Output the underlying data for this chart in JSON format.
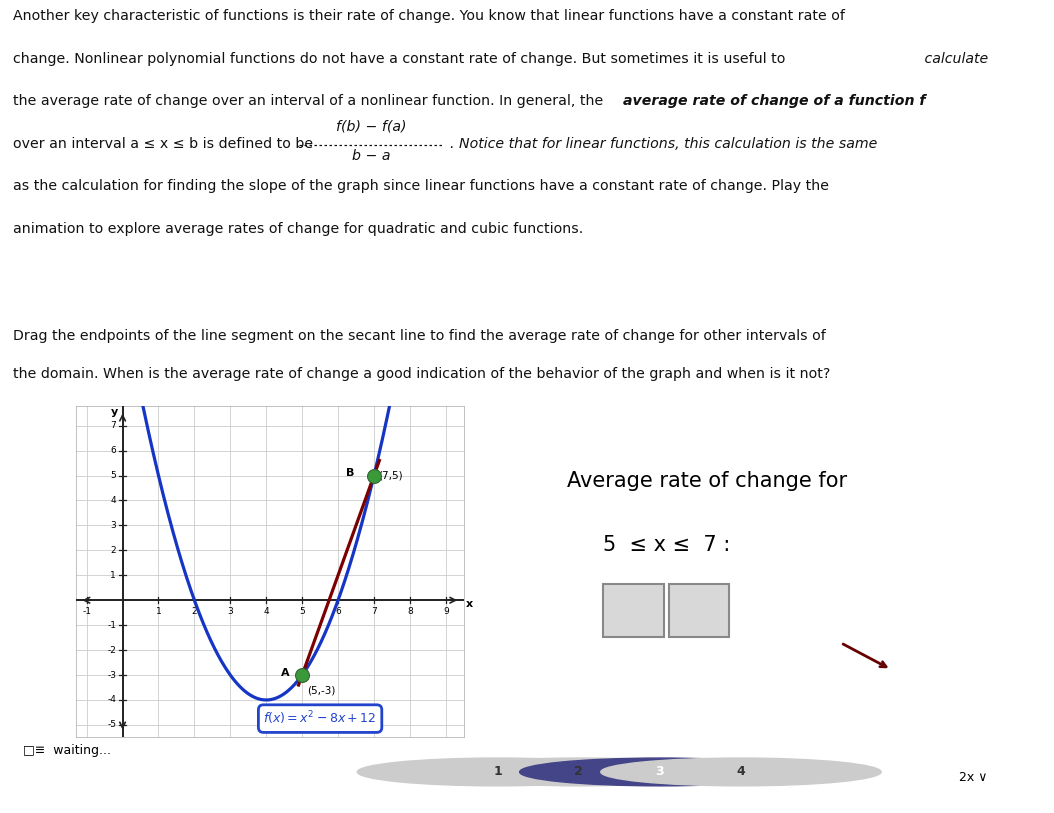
{
  "bg_color": "#e8e8e8",
  "white": "#ffffff",
  "box_bg": "#c8d8e8",
  "graph_bg": "#f5f5f5",
  "curve_color": "#1535c5",
  "secant_color": "#7b0000",
  "point_color": "#3a9a3a",
  "grid_color": "#cccccc",
  "axis_color": "#222222",
  "func_box_edge": "#2244cc",
  "func_box_text": "#2244cc",
  "nav_active_color": "#444488",
  "nav_inactive_color": "#cccccc",
  "text_color": "#111111",
  "line1": "Another key characteristic of functions is their rate of change. You know that linear functions have a constant rate of",
  "line2a": "change. Nonlinear polynomial functions do not have a constant rate of change. But sometimes it is useful to",
  "line2b": " calculate",
  "line3a": "the average rate of change over an interval of a nonlinear function. In general, the ",
  "line3b": "average rate of change of a function f",
  "line4a": "over an interval a ≤ x ≤ b is defined to be",
  "frac_num": "f(b) − f(a)",
  "frac_den": "b − a",
  "line4b": ". Notice that for linear functions, this calculation is the same",
  "line5": "as the calculation for finding the slope of the graph since linear functions have a constant rate of change. Play the",
  "line6": "animation to explore average rates of change for quadratic and cubic functions.",
  "box_line1": "Drag the endpoints of the line segment on the secant line to find the average rate of change for other intervals of",
  "box_line2": "the domain. When is the average rate of change a good indication of the behavior of the graph and when is it not?",
  "avg_title": "Average rate of change for",
  "avg_interval": "5  ≤ x ≤  7 :",
  "func_text": "f(x) = x² − 8x +12",
  "xlim": [
    -1.3,
    9.5
  ],
  "ylim": [
    -5.5,
    7.8
  ],
  "xtick_vals": [
    -1,
    1,
    2,
    3,
    4,
    5,
    6,
    7,
    8,
    9
  ],
  "ytick_vals": [
    -5,
    -4,
    -3,
    -2,
    -1,
    1,
    2,
    3,
    4,
    5,
    6,
    7
  ],
  "point_A": [
    5,
    -3
  ],
  "point_B": [
    7,
    5
  ],
  "waiting_text": "waiting...",
  "nav_labels": [
    "1",
    "2",
    "3",
    "4"
  ],
  "nav_active_idx": 2,
  "speed_label": "2x ∨"
}
